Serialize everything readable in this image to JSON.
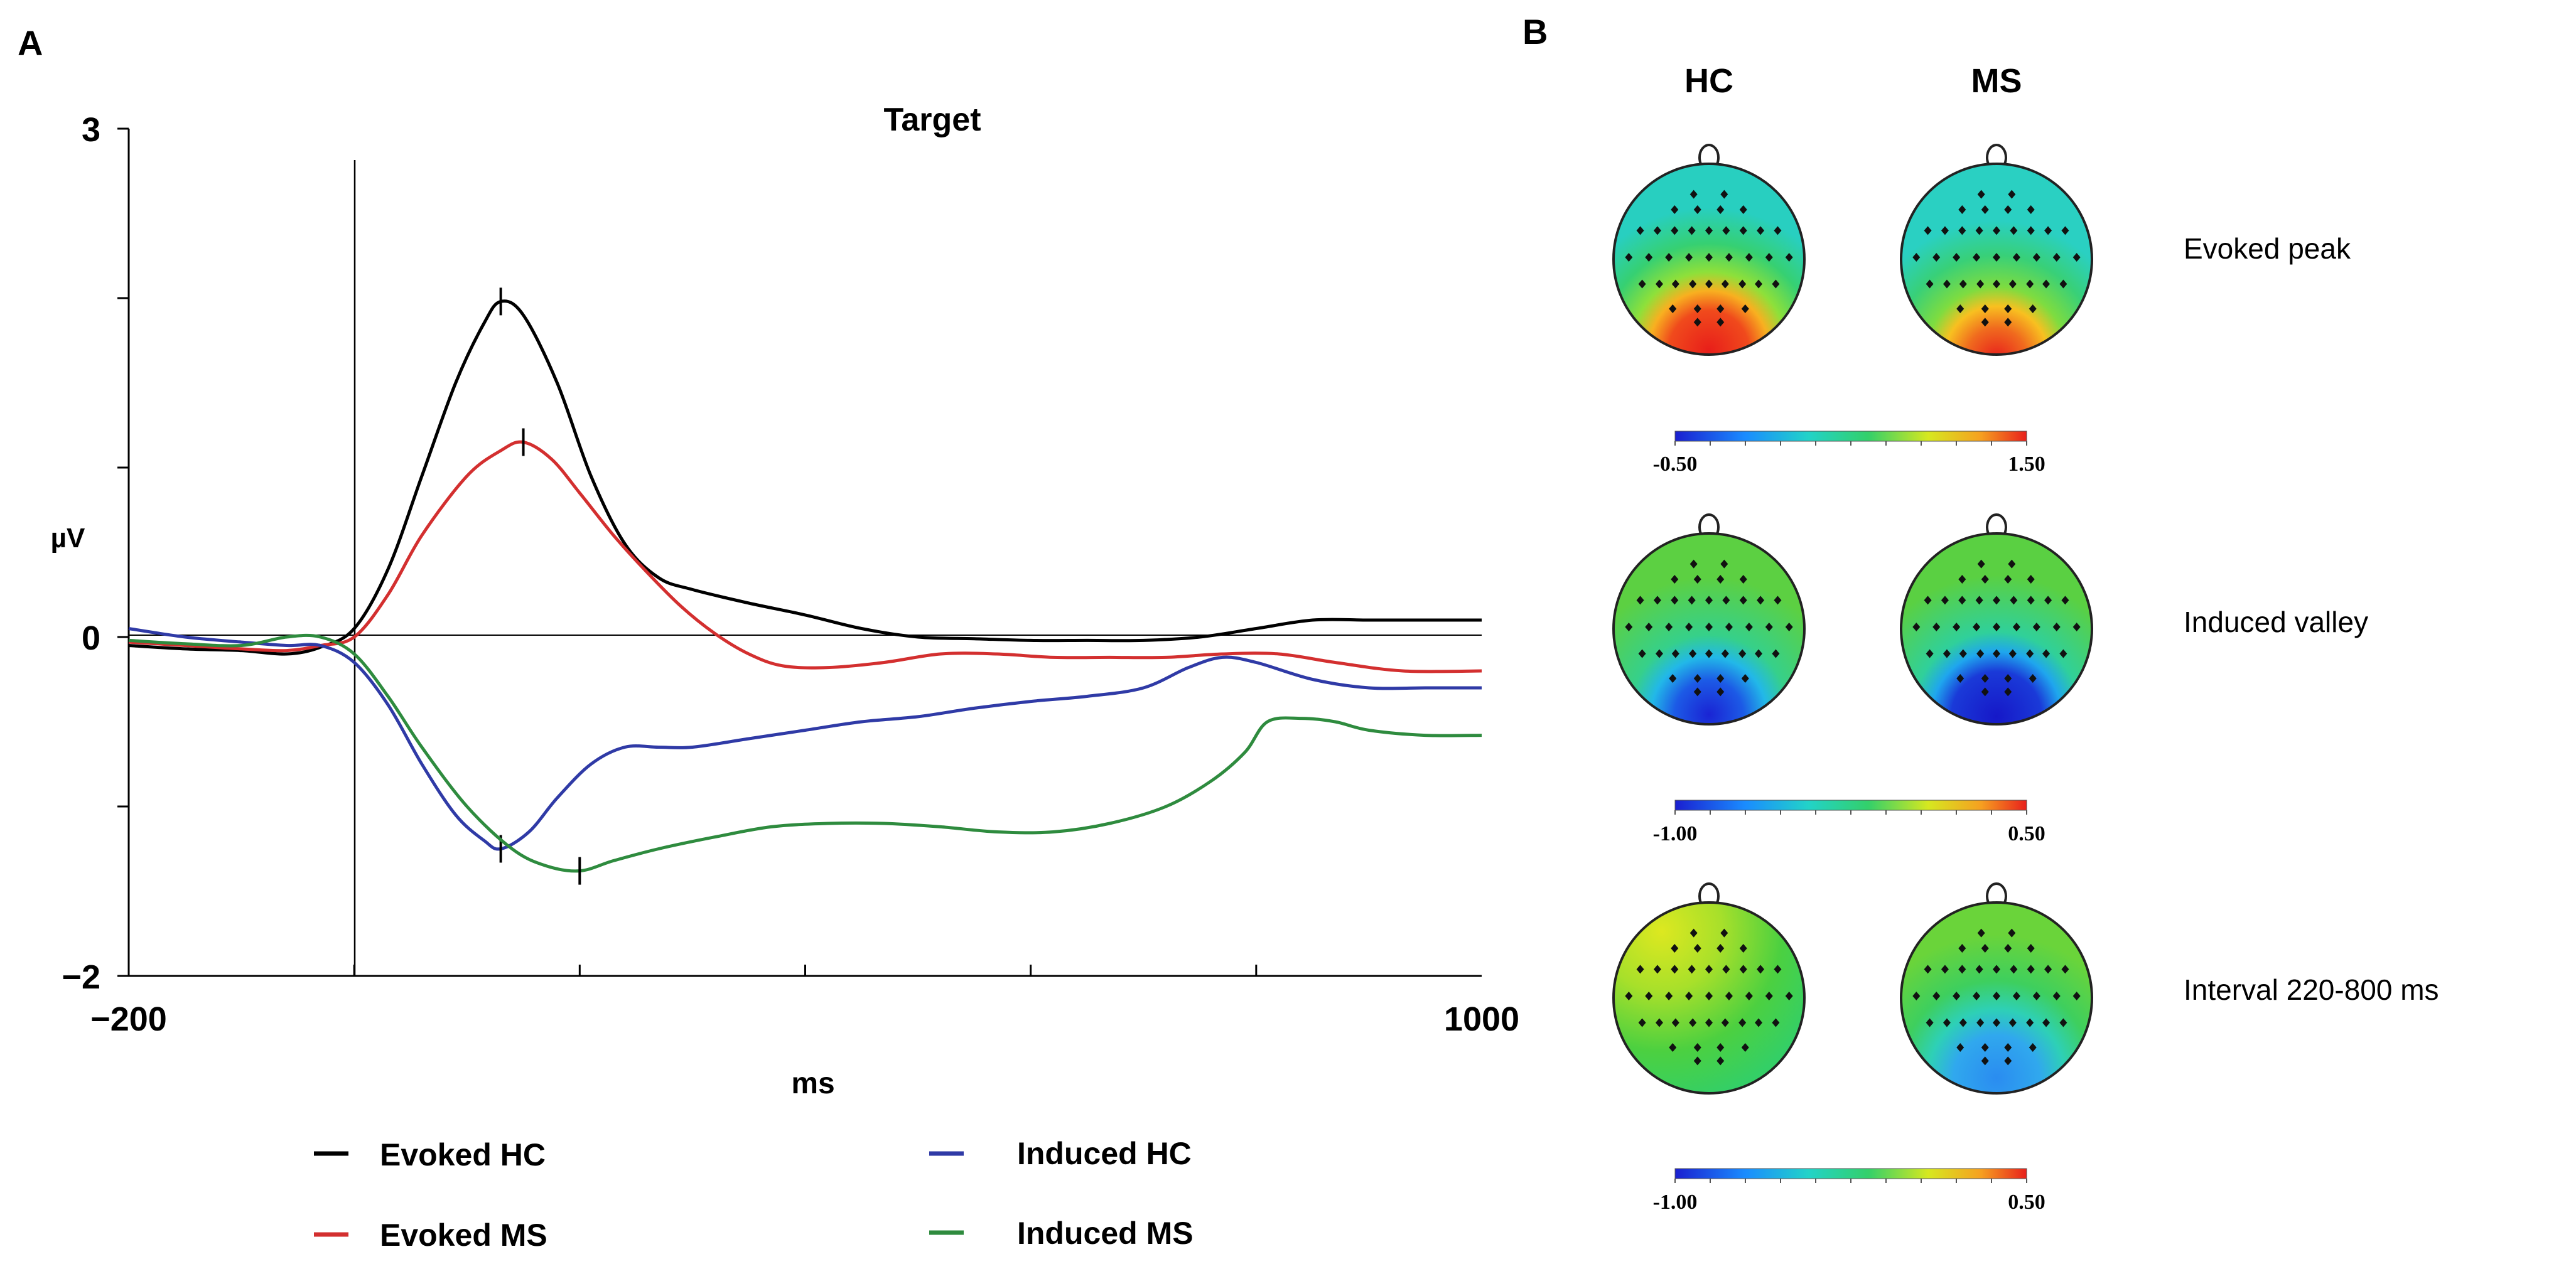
{
  "panels": {
    "a_label": "A",
    "b_label": "B"
  },
  "chart_data": {
    "type": "line",
    "title": "Target",
    "xlabel": "ms",
    "ylabel": "µV",
    "xlim": [
      -200,
      1000
    ],
    "ylim": [
      -2,
      3
    ],
    "x_tick_labels": [
      {
        "value": -200,
        "label": "−200"
      },
      {
        "value": 1000,
        "label": "1000"
      }
    ],
    "y_tick_labels": [
      {
        "value": 3,
        "label": "3"
      },
      {
        "value": 0,
        "label": "0"
      },
      {
        "value": -2,
        "label": "−2"
      }
    ],
    "x_minor_ticks": [
      0,
      200,
      400,
      600,
      800
    ],
    "y_minor_ticks": [
      2,
      1,
      -1
    ],
    "series": [
      {
        "name": "Evoked HC",
        "color": "#000000",
        "points": [
          [
            -200,
            -0.05
          ],
          [
            -150,
            -0.07
          ],
          [
            -100,
            -0.08
          ],
          [
            -60,
            -0.1
          ],
          [
            -30,
            -0.06
          ],
          [
            0,
            0.05
          ],
          [
            30,
            0.4
          ],
          [
            60,
            0.95
          ],
          [
            90,
            1.5
          ],
          [
            115,
            1.85
          ],
          [
            130,
            1.98
          ],
          [
            150,
            1.9
          ],
          [
            180,
            1.5
          ],
          [
            210,
            0.95
          ],
          [
            240,
            0.55
          ],
          [
            270,
            0.35
          ],
          [
            300,
            0.28
          ],
          [
            350,
            0.2
          ],
          [
            400,
            0.13
          ],
          [
            450,
            0.05
          ],
          [
            500,
            0.0
          ],
          [
            550,
            -0.01
          ],
          [
            600,
            -0.02
          ],
          [
            650,
            -0.02
          ],
          [
            700,
            -0.02
          ],
          [
            750,
            0.0
          ],
          [
            800,
            0.05
          ],
          [
            850,
            0.1
          ],
          [
            900,
            0.1
          ],
          [
            950,
            0.1
          ],
          [
            1000,
            0.1
          ]
        ],
        "markers": [
          [
            130,
            1.98
          ]
        ]
      },
      {
        "name": "Evoked MS",
        "color": "#d32f2f",
        "points": [
          [
            -200,
            -0.03
          ],
          [
            -150,
            -0.05
          ],
          [
            -100,
            -0.07
          ],
          [
            -60,
            -0.08
          ],
          [
            -30,
            -0.05
          ],
          [
            0,
            0.0
          ],
          [
            30,
            0.25
          ],
          [
            60,
            0.6
          ],
          [
            100,
            0.95
          ],
          [
            130,
            1.1
          ],
          [
            150,
            1.15
          ],
          [
            175,
            1.05
          ],
          [
            200,
            0.85
          ],
          [
            230,
            0.6
          ],
          [
            260,
            0.38
          ],
          [
            290,
            0.18
          ],
          [
            320,
            0.02
          ],
          [
            350,
            -0.1
          ],
          [
            380,
            -0.17
          ],
          [
            420,
            -0.18
          ],
          [
            470,
            -0.15
          ],
          [
            520,
            -0.1
          ],
          [
            570,
            -0.1
          ],
          [
            620,
            -0.12
          ],
          [
            670,
            -0.12
          ],
          [
            720,
            -0.12
          ],
          [
            770,
            -0.1
          ],
          [
            820,
            -0.1
          ],
          [
            870,
            -0.15
          ],
          [
            930,
            -0.2
          ],
          [
            1000,
            -0.2
          ]
        ],
        "markers": [
          [
            150,
            1.15
          ]
        ]
      },
      {
        "name": "Induced HC",
        "color": "#2f3aa6",
        "points": [
          [
            -200,
            0.05
          ],
          [
            -150,
            0.0
          ],
          [
            -100,
            -0.03
          ],
          [
            -60,
            -0.05
          ],
          [
            -30,
            -0.05
          ],
          [
            0,
            -0.15
          ],
          [
            30,
            -0.4
          ],
          [
            60,
            -0.75
          ],
          [
            90,
            -1.05
          ],
          [
            115,
            -1.2
          ],
          [
            130,
            -1.25
          ],
          [
            155,
            -1.15
          ],
          [
            180,
            -0.95
          ],
          [
            210,
            -0.75
          ],
          [
            240,
            -0.65
          ],
          [
            270,
            -0.65
          ],
          [
            300,
            -0.65
          ],
          [
            350,
            -0.6
          ],
          [
            400,
            -0.55
          ],
          [
            450,
            -0.5
          ],
          [
            500,
            -0.47
          ],
          [
            550,
            -0.42
          ],
          [
            600,
            -0.38
          ],
          [
            650,
            -0.35
          ],
          [
            700,
            -0.3
          ],
          [
            740,
            -0.18
          ],
          [
            770,
            -0.12
          ],
          [
            800,
            -0.15
          ],
          [
            850,
            -0.25
          ],
          [
            900,
            -0.3
          ],
          [
            950,
            -0.3
          ],
          [
            1000,
            -0.3
          ]
        ],
        "markers": [
          [
            130,
            -1.25
          ]
        ]
      },
      {
        "name": "Induced MS",
        "color": "#2e8b3e",
        "points": [
          [
            -200,
            -0.02
          ],
          [
            -150,
            -0.04
          ],
          [
            -100,
            -0.05
          ],
          [
            -60,
            0.0
          ],
          [
            -30,
            0.0
          ],
          [
            0,
            -0.1
          ],
          [
            30,
            -0.35
          ],
          [
            60,
            -0.65
          ],
          [
            100,
            -1.0
          ],
          [
            140,
            -1.25
          ],
          [
            170,
            -1.35
          ],
          [
            200,
            -1.38
          ],
          [
            230,
            -1.32
          ],
          [
            270,
            -1.25
          ],
          [
            320,
            -1.18
          ],
          [
            370,
            -1.12
          ],
          [
            420,
            -1.1
          ],
          [
            470,
            -1.1
          ],
          [
            520,
            -1.12
          ],
          [
            570,
            -1.15
          ],
          [
            620,
            -1.15
          ],
          [
            670,
            -1.1
          ],
          [
            720,
            -1.0
          ],
          [
            760,
            -0.85
          ],
          [
            790,
            -0.68
          ],
          [
            810,
            -0.5
          ],
          [
            840,
            -0.48
          ],
          [
            870,
            -0.5
          ],
          [
            900,
            -0.55
          ],
          [
            950,
            -0.58
          ],
          [
            1000,
            -0.58
          ]
        ],
        "markers": [
          [
            200,
            -1.38
          ]
        ]
      }
    ]
  },
  "legend": {
    "evoked_hc": "Evoked HC",
    "evoked_ms": "Evoked MS",
    "induced_hc": "Induced HC",
    "induced_ms": "Induced MS"
  },
  "topomaps": {
    "columns": [
      "HC",
      "MS"
    ],
    "rows": [
      {
        "label": "Evoked peak",
        "scale_min": "-0.50",
        "scale_max": "1.50"
      },
      {
        "label": "Induced valley",
        "scale_min": "-1.00",
        "scale_max": "0.50"
      },
      {
        "label": "Interval 220-800 ms",
        "scale_min": "-1.00",
        "scale_max": "0.50"
      }
    ],
    "colormap": [
      "#1a1fd0",
      "#1a8cff",
      "#22d3c8",
      "#33d06a",
      "#d6e820",
      "#f6a020",
      "#e8201c"
    ]
  }
}
